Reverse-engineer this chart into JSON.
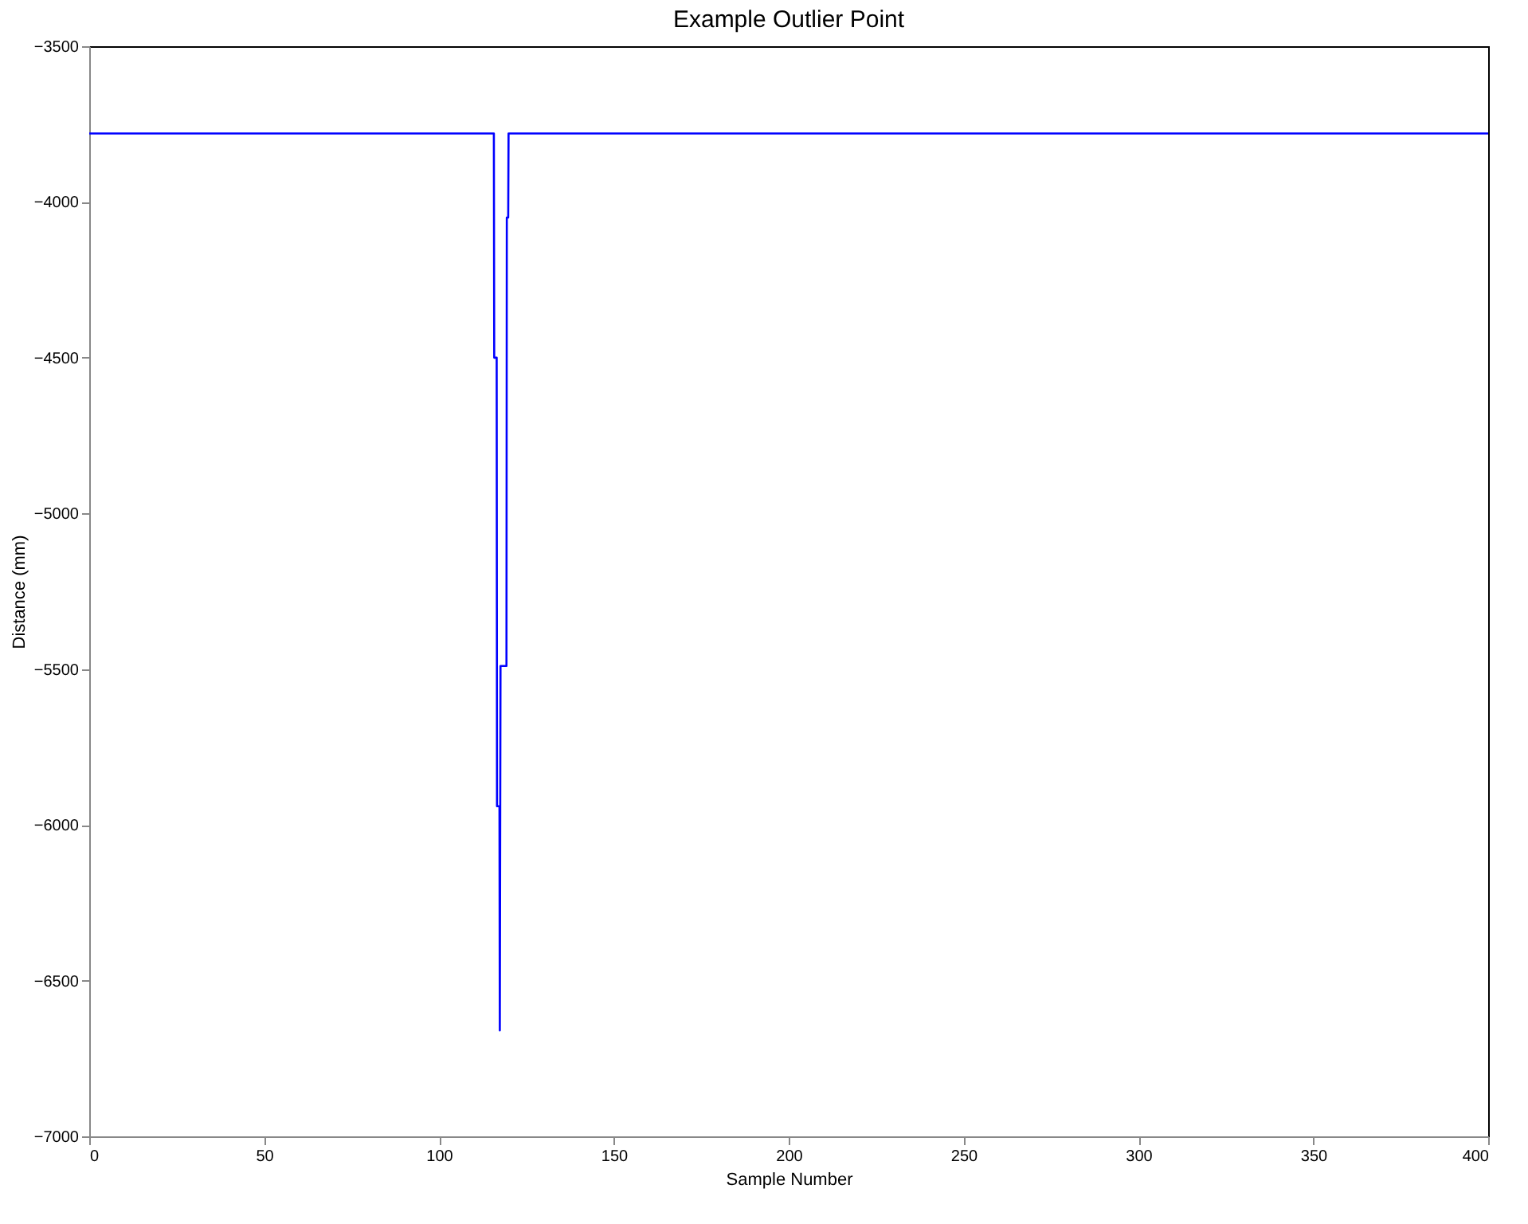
{
  "chart_data": {
    "type": "line",
    "title": "Example Outlier Point",
    "xlabel": "Sample Number",
    "ylabel": "Distance (mm)",
    "x": [
      0,
      115.7,
      115.8,
      116.5,
      116.6,
      117.3,
      117.4,
      117.6,
      119.3,
      119.4,
      119.8,
      119.9,
      400
    ],
    "series": [
      {
        "color": "#0000ff",
        "values": [
          -3780,
          -3780,
          -4500,
          -4500,
          -5940,
          -5940,
          -6660,
          -5490,
          -5490,
          -4050,
          -4050,
          -3780,
          -3780
        ]
      }
    ],
    "xlim": [
      0,
      400
    ],
    "xticks": [
      0,
      50,
      100,
      150,
      200,
      250,
      300,
      350,
      400
    ],
    "ylim": [
      -7000,
      -3500
    ],
    "yticks": [
      -7000,
      -6500,
      -6000,
      -5500,
      -5000,
      -4500,
      -4000,
      -3500
    ],
    "grid": false,
    "marker": "none",
    "line_style": "solid"
  }
}
